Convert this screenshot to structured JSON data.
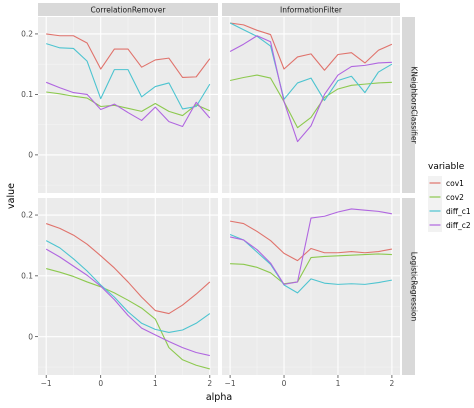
{
  "chart_data": {
    "type": "line",
    "facet_layout": {
      "columns": [
        "CorrelationRemover",
        "InformationFilter"
      ],
      "rows": [
        "KNeighborsClassifier",
        "LogisticRegression"
      ]
    },
    "xlabel": "alpha",
    "ylabel": "value",
    "x_ticks": [
      -1,
      0,
      1,
      2
    ],
    "y_ticks": [
      0,
      0.1,
      0.2
    ],
    "xlim": [
      -1.15,
      2.15
    ],
    "ylim": [
      -0.063,
      0.228
    ],
    "grid": true,
    "legend": {
      "title": "variable",
      "placement": "right"
    },
    "series_colors": {
      "cov1": "#e0736c",
      "cov2": "#8dc94f",
      "diff_c1": "#4dc4d0",
      "diff_c2": "#b066e0"
    },
    "x": [
      -1,
      -0.75,
      -0.5,
      -0.25,
      0,
      0.25,
      0.5,
      0.75,
      1,
      1.25,
      1.5,
      1.75,
      2
    ],
    "panels": [
      {
        "row": "KNeighborsClassifier",
        "col": "CorrelationRemover",
        "series": [
          {
            "name": "cov1",
            "values": [
              0.2,
              0.197,
              0.197,
              0.185,
              0.142,
              0.175,
              0.175,
              0.145,
              0.157,
              0.16,
              0.128,
              0.129,
              0.159
            ]
          },
          {
            "name": "cov2",
            "values": [
              0.104,
              0.101,
              0.097,
              0.094,
              0.08,
              0.082,
              0.077,
              0.072,
              0.085,
              0.072,
              0.065,
              0.083,
              0.073
            ]
          },
          {
            "name": "diff_c1",
            "values": [
              0.184,
              0.177,
              0.176,
              0.155,
              0.093,
              0.141,
              0.141,
              0.096,
              0.113,
              0.119,
              0.076,
              0.08,
              0.117
            ]
          },
          {
            "name": "diff_c2",
            "values": [
              0.12,
              0.111,
              0.103,
              0.1,
              0.075,
              0.084,
              0.07,
              0.057,
              0.079,
              0.055,
              0.047,
              0.087,
              0.061
            ]
          }
        ]
      },
      {
        "row": "KNeighborsClassifier",
        "col": "InformationFilter",
        "series": [
          {
            "name": "cov1",
            "values": [
              0.218,
              0.215,
              0.206,
              0.199,
              0.142,
              0.162,
              0.167,
              0.14,
              0.166,
              0.169,
              0.152,
              0.173,
              0.183
            ]
          },
          {
            "name": "cov2",
            "values": [
              0.123,
              0.128,
              0.132,
              0.127,
              0.088,
              0.045,
              0.062,
              0.095,
              0.109,
              0.115,
              0.117,
              0.119,
              0.12
            ]
          },
          {
            "name": "diff_c1",
            "values": [
              0.218,
              0.207,
              0.196,
              0.18,
              0.092,
              0.119,
              0.127,
              0.09,
              0.123,
              0.13,
              0.103,
              0.137,
              0.15
            ]
          },
          {
            "name": "diff_c2",
            "values": [
              0.171,
              0.183,
              0.197,
              0.187,
              0.088,
              0.022,
              0.048,
              0.1,
              0.132,
              0.146,
              0.148,
              0.152,
              0.153
            ]
          }
        ]
      },
      {
        "row": "LogisticRegression",
        "col": "CorrelationRemover",
        "series": [
          {
            "name": "cov1",
            "values": [
              0.186,
              0.178,
              0.167,
              0.152,
              0.133,
              0.113,
              0.09,
              0.065,
              0.043,
              0.038,
              0.052,
              0.07,
              0.09
            ]
          },
          {
            "name": "cov2",
            "values": [
              0.112,
              0.106,
              0.099,
              0.09,
              0.082,
              0.072,
              0.06,
              0.047,
              0.029,
              -0.018,
              -0.038,
              -0.047,
              -0.053
            ]
          },
          {
            "name": "diff_c1",
            "values": [
              0.158,
              0.146,
              0.128,
              0.108,
              0.085,
              0.065,
              0.041,
              0.022,
              0.012,
              0.007,
              0.011,
              0.022,
              0.038
            ]
          },
          {
            "name": "diff_c2",
            "values": [
              0.144,
              0.131,
              0.116,
              0.101,
              0.083,
              0.061,
              0.035,
              0.014,
              0.003,
              -0.008,
              -0.018,
              -0.026,
              -0.031
            ]
          }
        ]
      },
      {
        "row": "LogisticRegression",
        "col": "InformationFilter",
        "series": [
          {
            "name": "cov1",
            "values": [
              0.19,
              0.186,
              0.173,
              0.158,
              0.137,
              0.125,
              0.145,
              0.138,
              0.138,
              0.14,
              0.138,
              0.14,
              0.144
            ]
          },
          {
            "name": "cov2",
            "values": [
              0.12,
              0.119,
              0.114,
              0.105,
              0.087,
              0.09,
              0.13,
              0.132,
              0.133,
              0.134,
              0.135,
              0.136,
              0.135
            ]
          },
          {
            "name": "diff_c1",
            "values": [
              0.168,
              0.159,
              0.139,
              0.119,
              0.085,
              0.072,
              0.095,
              0.088,
              0.086,
              0.087,
              0.086,
              0.089,
              0.093
            ]
          },
          {
            "name": "diff_c2",
            "values": [
              0.164,
              0.159,
              0.143,
              0.121,
              0.086,
              0.09,
              0.195,
              0.198,
              0.205,
              0.21,
              0.208,
              0.206,
              0.202
            ]
          }
        ]
      }
    ]
  }
}
